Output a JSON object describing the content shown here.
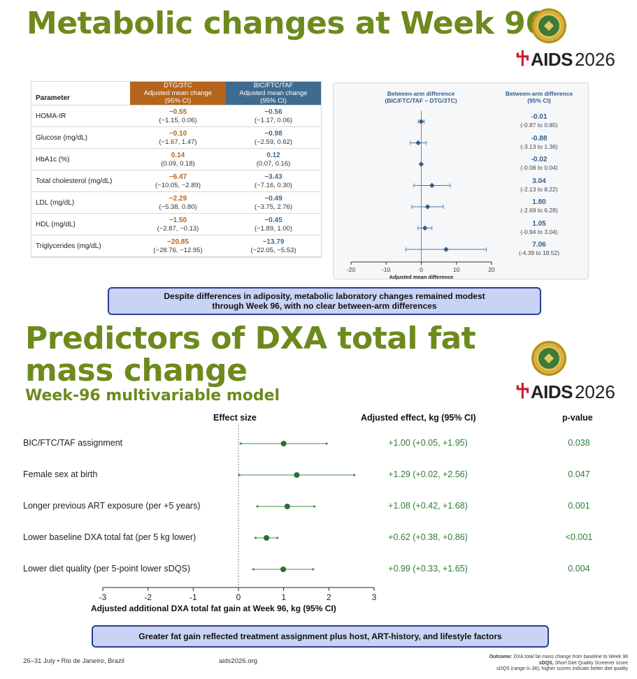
{
  "slide1": {
    "title": "Metabolic changes at Week 96",
    "table": {
      "header_param": "Parameter",
      "header_dtg": [
        "DTG/3TC",
        "Adjusted mean change",
        "(95% CI)"
      ],
      "header_bic": [
        "BIC/FTC/TAF",
        "Adjusted mean change",
        "(95% CI)"
      ],
      "rows": [
        {
          "param": "HOMA-IR",
          "dtg": "−0.55",
          "dtg_ci": "(−1.15, 0.06)",
          "bic": "−0.56",
          "bic_ci": "(−1.17, 0.06)"
        },
        {
          "param": "Glucose (mg/dL)",
          "dtg": "−0.10",
          "dtg_ci": "(−1.67, 1.47)",
          "bic": "−0.98",
          "bic_ci": "(−2.59, 0.62)"
        },
        {
          "param": "HbA1c (%)",
          "dtg": "0.14",
          "dtg_ci": "(0.09, 0.18)",
          "bic": "0.12",
          "bic_ci": "(0.07, 0.16)"
        },
        {
          "param": "Total cholesterol (mg/dL)",
          "dtg": "−6.47",
          "dtg_ci": "(−10.05, −2.89)",
          "bic": "−3.43",
          "bic_ci": "(−7.16, 0.30)"
        },
        {
          "param": "LDL (mg/dL)",
          "dtg": "−2.29",
          "dtg_ci": "(−5.38, 0.80)",
          "bic": "−0.49",
          "bic_ci": "(−3.75, 2.76)"
        },
        {
          "param": "HDL (mg/dL)",
          "dtg": "−1.50",
          "dtg_ci": "(−2.87, −0.13)",
          "bic": "−0.45",
          "bic_ci": "(−1.89, 1.00)"
        },
        {
          "param": "Triglycerides (mg/dL)",
          "dtg": "−20.85",
          "dtg_ci": "(−28.76, −12.95)",
          "bic": "−13.79",
          "bic_ci": "(−22.05, −5.53)"
        }
      ]
    },
    "forest": {
      "head_left": [
        "Between-arm difference",
        "(BIC/FTC/TAF – DTG/3TC)"
      ],
      "head_right": [
        "Between-arm difference",
        "(95% CI)"
      ],
      "xlabel": "Adjusted mean difference",
      "values": [
        {
          "value": "-0.01",
          "ci": "(-0.87 to 0.85)"
        },
        {
          "value": "-0.88",
          "ci": "(-3.13 to 1.36)"
        },
        {
          "value": "-0.02",
          "ci": "(-0.08 to 0.04)"
        },
        {
          "value": "3.04",
          "ci": "(-2.13 to 8.22)"
        },
        {
          "value": "1.80",
          "ci": "(-2.69 to 6.28)"
        },
        {
          "value": "1.05",
          "ci": "(-0.94 to 3.04)"
        },
        {
          "value": "7.06",
          "ci": "(-4.39 to 18.52)"
        }
      ]
    },
    "callout": [
      "Despite differences in adiposity, metabolic laboratory changes remained modest",
      "through Week 96, with no clear between-arm differences"
    ]
  },
  "slide2": {
    "title": "Predictors of DXA total fat mass change",
    "subtitle": "Week-96 multivariable model",
    "head_effect_size": "Effect size",
    "head_adjusted": "Adjusted effect, kg (95% CI)",
    "head_p": "p-value",
    "xlabel": "Adjusted additional DXA total fat gain at Week 96, kg (95% CI)",
    "rows": [
      {
        "label": "BIC/FTC/TAF assignment",
        "effect": "+1.00 (+0.05, +1.95)",
        "p": "0.038"
      },
      {
        "label": "Female sex at birth",
        "effect": "+1.29 (+0.02, +2.56)",
        "p": "0.047"
      },
      {
        "label": "Longer previous ART exposure (per +5 years)",
        "effect": "+1.08 (+0.42, +1.68)",
        "p": "0.001"
      },
      {
        "label": "Lower baseline DXA total fat (per 5 kg lower)",
        "effect": "+0.62 (+0.38, +0.86)",
        "p": "<0.001"
      },
      {
        "label": "Lower diet quality (per 5-point lower sDQS)",
        "effect": "+0.99 (+0.33, +1.65)",
        "p": "0.004"
      }
    ],
    "callout": "Greater fat gain reflected treatment assignment plus host, ART-history, and lifestyle factors"
  },
  "logo": {
    "brand": "AIDS",
    "year": "2026"
  },
  "footer": {
    "dates": "26–31 July  •  Rio de Janeiro, Brazil",
    "site": "aids2026.org",
    "note_outcome_label": "Outcome:",
    "note_outcome": " DXA total fat mass change from baseline to Week 96",
    "note_sdqs_label": "sDQS,",
    "note_sdqs": " Short Diet Quality Screener score",
    "note_range": "sDQS (range 0–36); higher scores indicate better diet quality"
  },
  "colors": {
    "title_green": "#6d8a1d",
    "dtg_orange": "#b5651d",
    "bic_blue": "#3f6b8f",
    "forest_blue": "#2f5e8c",
    "effect_green": "#2e7d32",
    "callout_fill": "#c9d3f5",
    "callout_border": "#2b3d8f",
    "ribbon_red": "#d0202a"
  },
  "chart_data": [
    {
      "type": "scatter",
      "categories": [
        "HOMA-IR",
        "Glucose (mg/dL)",
        "HbA1c (%)",
        "Total cholesterol (mg/dL)",
        "LDL (mg/dL)",
        "HDL (mg/dL)",
        "Triglycerides (mg/dL)"
      ],
      "estimates": [
        -0.01,
        -0.88,
        -0.02,
        3.04,
        1.8,
        1.05,
        7.06
      ],
      "ci_low": [
        -0.87,
        -3.13,
        -0.08,
        -2.13,
        -2.69,
        -0.94,
        -4.39
      ],
      "ci_high": [
        0.85,
        1.36,
        0.04,
        8.22,
        6.28,
        3.04,
        18.52
      ],
      "xlabel": "Adjusted mean difference",
      "xlim": [
        -20,
        20
      ],
      "xticks": [
        "-20",
        "-10",
        "0",
        "10",
        "20"
      ],
      "reference_line": 0,
      "marker": "diamond",
      "grid": false
    },
    {
      "type": "scatter",
      "categories": [
        "BIC/FTC/TAF assignment",
        "Female sex at birth",
        "Longer previous ART exposure (per +5 years)",
        "Lower baseline DXA total fat (per 5 kg lower)",
        "Lower diet quality (per 5-point lower sDQS)"
      ],
      "estimates": [
        1.0,
        1.29,
        1.08,
        0.62,
        0.99
      ],
      "ci_low": [
        0.05,
        0.02,
        0.42,
        0.38,
        0.33
      ],
      "ci_high": [
        1.95,
        2.56,
        1.68,
        0.86,
        1.65
      ],
      "xlabel": "Adjusted additional DXA total fat gain at Week 96, kg (95% CI)",
      "xlim": [
        -3,
        3
      ],
      "xticks": [
        "-3",
        "-2",
        "-1",
        "0",
        "1",
        "2",
        "3"
      ],
      "reference_line": 0,
      "marker": "circle",
      "grid": false
    }
  ]
}
